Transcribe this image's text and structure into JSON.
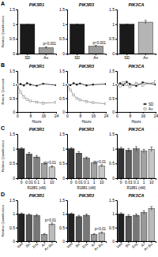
{
  "chart_data": [
    {
      "type": "bar",
      "panel": "A",
      "title": "PIK3R1",
      "y_label": "Relative Quantification",
      "categories": [
        "SD",
        "A+"
      ],
      "values": [
        1,
        0.2
      ],
      "errors": [
        0,
        0.03
      ],
      "colors": [
        "#1a1a1a",
        "#9a9a9a"
      ],
      "ylim": [
        0,
        1.5
      ],
      "yticks": [
        0,
        0.5,
        1,
        1.5
      ],
      "annotations": [
        {
          "text": "p<0.001"
        }
      ]
    },
    {
      "type": "bar",
      "title": "PIK3R3",
      "categories": [
        "SD",
        "A+"
      ],
      "values": [
        1,
        0.25
      ],
      "errors": [
        0,
        0.03
      ],
      "colors": [
        "#1a1a1a",
        "#9a9a9a"
      ],
      "ylim": [
        0,
        1.5
      ],
      "yticks": [
        0,
        0.5,
        1,
        1.5
      ],
      "annotations": [
        {
          "text": "p<0.001"
        }
      ]
    },
    {
      "type": "bar",
      "title": "PIK3CA",
      "categories": [
        "SD",
        "A+"
      ],
      "values": [
        1,
        1.07
      ],
      "errors": [
        0,
        0.06
      ],
      "colors": [
        "#1a1a1a",
        "#b5b5b5"
      ],
      "ylim": [
        0,
        1.5
      ],
      "yticks": [
        0,
        0.5,
        1,
        1.5
      ]
    },
    {
      "type": "line",
      "panel": "B",
      "title": "PIK3R1",
      "y_label": "Ratio to Quiescent",
      "x_label": "Hours",
      "x": [
        0,
        2,
        4,
        6,
        8,
        12,
        16,
        24
      ],
      "xlim": [
        0,
        24
      ],
      "xticks": [
        0,
        8,
        16,
        24
      ],
      "ylim": [
        0,
        1.5
      ],
      "yticks": [
        0,
        0.5,
        1,
        1.5
      ],
      "series": [
        {
          "color": "#222222",
          "marker": "circle",
          "values": [
            1,
            1.02,
            0.97,
            1.05,
            1.0,
            0.96,
            1.03,
            0.98
          ]
        },
        {
          "color": "#888888",
          "marker": "square",
          "values": [
            1,
            0.72,
            0.55,
            0.46,
            0.4,
            0.36,
            0.32,
            0.35
          ]
        }
      ]
    },
    {
      "type": "line",
      "title": "PIK3R3",
      "x_label": "Hours",
      "x": [
        0,
        2,
        4,
        6,
        8,
        12,
        16,
        24
      ],
      "xlim": [
        0,
        24
      ],
      "xticks": [
        0,
        8,
        16,
        24
      ],
      "ylim": [
        0,
        1.5
      ],
      "yticks": [
        0,
        0.5,
        1,
        1.5
      ],
      "series": [
        {
          "color": "#222222",
          "marker": "circle",
          "values": [
            1,
            0.98,
            1.05,
            1.0,
            1.04,
            0.97,
            1.0,
            1.02
          ]
        },
        {
          "color": "#888888",
          "marker": "square",
          "values": [
            1,
            0.8,
            0.62,
            0.5,
            0.44,
            0.38,
            0.34,
            0.3
          ]
        }
      ]
    },
    {
      "type": "line",
      "title": "PIK3CA",
      "x_label": "Hours",
      "legend": "lower right",
      "x": [
        0,
        2,
        4,
        6,
        8,
        12,
        16,
        24
      ],
      "xlim": [
        0,
        24
      ],
      "xticks": [
        0,
        8,
        16,
        24
      ],
      "ylim": [
        0,
        1.5
      ],
      "yticks": [
        0,
        0.5,
        1,
        1.5
      ],
      "series": [
        {
          "name": "SD",
          "color": "#222222",
          "marker": "circle",
          "values": [
            1,
            1.05,
            0.98,
            1.1,
            1.02,
            0.95,
            1.08,
            1.0
          ]
        },
        {
          "name": "A+",
          "color": "#888888",
          "marker": "square",
          "values": [
            1,
            0.95,
            1.08,
            1.0,
            0.92,
            1.05,
            0.98,
            1.1
          ]
        }
      ]
    },
    {
      "type": "bar",
      "panel": "C",
      "title": "PIK3R1",
      "y_label": "Relative Quantification",
      "x_label": "R1881 (nM)",
      "categories": [
        "0",
        "0.01",
        "0.1",
        "1",
        "10"
      ],
      "values": [
        1,
        0.82,
        0.72,
        0.5,
        0.38
      ],
      "errors": [
        0.04,
        0.05,
        0.05,
        0.04,
        0.04
      ],
      "colors": [
        "#333333",
        "#5c5c5c",
        "#808080",
        "#a3a3a3",
        "#c6c6c6"
      ],
      "ylim": [
        0,
        1.5
      ],
      "yticks": [
        0,
        0.5,
        1,
        1.5
      ],
      "annotations": [
        {
          "text": "p<0.01"
        }
      ]
    },
    {
      "type": "bar",
      "title": "PIK3R3",
      "x_label": "R1881 (nM)",
      "categories": [
        "0",
        "0.01",
        "0.1",
        "1",
        "10"
      ],
      "values": [
        1,
        0.85,
        0.68,
        0.52,
        0.42
      ],
      "errors": [
        0.04,
        0.05,
        0.04,
        0.05,
        0.04
      ],
      "colors": [
        "#333333",
        "#5c5c5c",
        "#808080",
        "#a3a3a3",
        "#c6c6c6"
      ],
      "ylim": [
        0,
        1.5
      ],
      "yticks": [
        0,
        0.5,
        1,
        1.5
      ],
      "annotations": [
        {
          "text": "p<0.01"
        }
      ]
    },
    {
      "type": "bar",
      "title": "PIK3CA",
      "x_label": "R1881 (nM)",
      "categories": [
        "0",
        "0.01",
        "0.1",
        "1",
        "10"
      ],
      "values": [
        1,
        0.95,
        1.0,
        0.92,
        0.98
      ],
      "errors": [
        0.05,
        0.06,
        0.07,
        0.06,
        0.08
      ],
      "colors": [
        "#333333",
        "#5c5c5c",
        "#808080",
        "#a3a3a3",
        "#c6c6c6"
      ],
      "ylim": [
        0,
        1.5
      ],
      "yticks": [
        0,
        0.5,
        1,
        1.5
      ]
    },
    {
      "type": "bar",
      "panel": "D",
      "title": "PIK3R1",
      "y_label": "Relative Quantification",
      "categories": [
        "Veh",
        "Bic",
        "Enz",
        "A+",
        "A+ Bic"
      ],
      "values": [
        1,
        0.96,
        0.94,
        0.25,
        0.62
      ],
      "errors": [
        0.03,
        0.04,
        0.04,
        0.03,
        0.05
      ],
      "colors": [
        "#222222",
        "#555555",
        "#777777",
        "#999999",
        "#bbbbbb"
      ],
      "ylim": [
        0,
        1.5
      ],
      "yticks": [
        0,
        0.5,
        1,
        1.5
      ],
      "annotations": [
        {
          "text": "p<0.01"
        }
      ]
    },
    {
      "type": "bar",
      "title": "PIK3R3",
      "categories": [
        "Veh",
        "Bic",
        "Enz",
        "A+",
        "A+ Bic"
      ],
      "values": [
        1,
        0.9,
        0.95,
        0.25,
        0.3
      ],
      "errors": [
        0.03,
        0.05,
        0.04,
        0.03,
        0.04
      ],
      "colors": [
        "#222222",
        "#555555",
        "#777777",
        "#999999",
        "#bbbbbb"
      ],
      "ylim": [
        0,
        1.5
      ],
      "yticks": [
        0,
        0.5,
        1,
        1.5
      ],
      "annotations": [
        {
          "text": "p<0.01"
        }
      ]
    },
    {
      "type": "bar",
      "title": "PIK3CA",
      "categories": [
        "Veh",
        "Bic",
        "Enz",
        "A+",
        "A+ Bic"
      ],
      "values": [
        1,
        0.92,
        0.95,
        1.05,
        1.2
      ],
      "errors": [
        0.04,
        0.05,
        0.05,
        0.06,
        0.07
      ],
      "colors": [
        "#222222",
        "#555555",
        "#777777",
        "#999999",
        "#bbbbbb"
      ],
      "ylim": [
        0,
        1.5
      ],
      "yticks": [
        0,
        0.5,
        1,
        1.5
      ]
    }
  ]
}
